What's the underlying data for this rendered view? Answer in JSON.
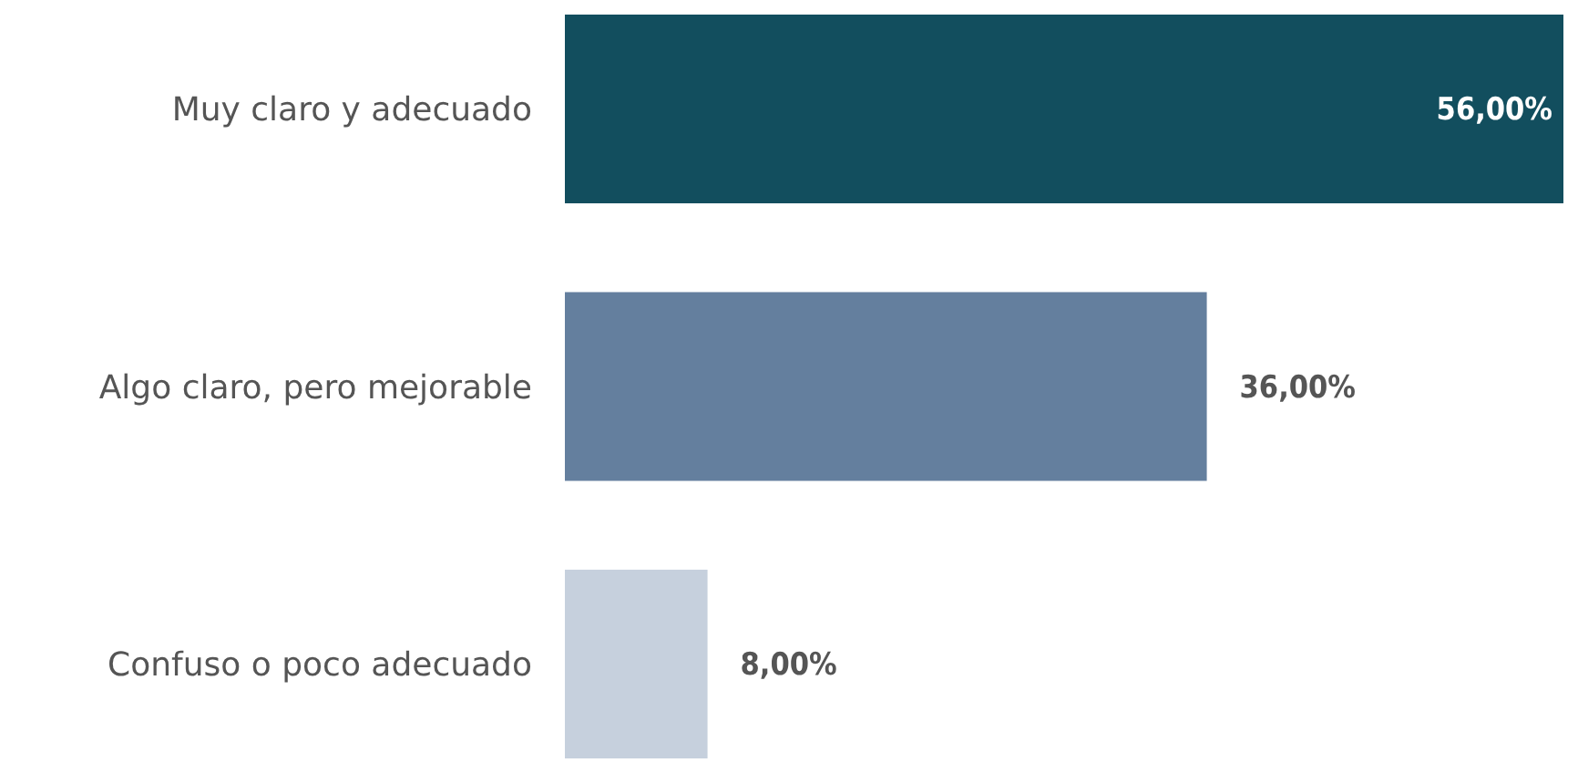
{
  "chart_data": {
    "type": "bar",
    "orientation": "horizontal",
    "categories": [
      "Muy claro y adecuado",
      "Algo claro, pero mejorable",
      "Confuso o poco adecuado"
    ],
    "values": [
      56,
      36,
      8
    ],
    "colors": [
      "#124e5e",
      "#647f9e",
      "#c6d0dd"
    ],
    "value_labels": [
      "56,00%",
      "36,00%",
      "8,00%"
    ]
  }
}
